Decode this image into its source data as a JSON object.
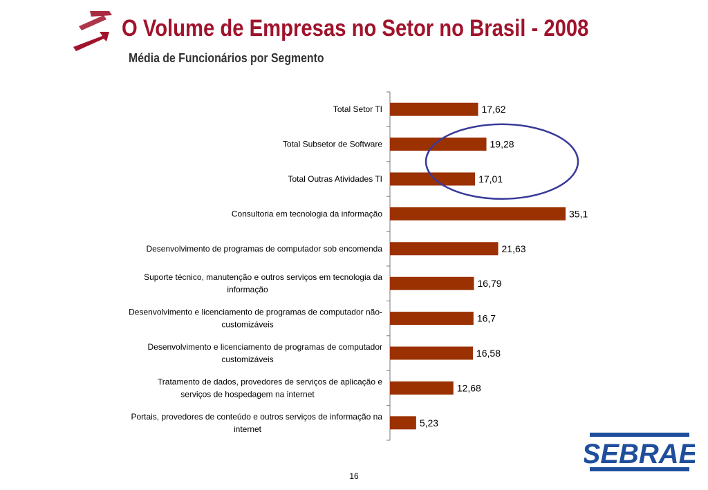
{
  "header": {
    "title": "O Volume de Empresas no Setor no Brasil - 2008",
    "subtitle": "Média de Funcionários por Segmento"
  },
  "footer": {
    "page_number": "16",
    "logo_text": "SEBRAE"
  },
  "colors": {
    "title": "#a0132c",
    "bar": "#9b3000",
    "highlight_ellipse": "#3a3a9a",
    "logo": "#1f4e9c"
  },
  "icons": {
    "header_arrow": "red-arrow-icon",
    "logo": "sebrae-logo"
  },
  "chart_data": {
    "type": "bar",
    "orientation": "horizontal",
    "title": "",
    "xlabel": "",
    "ylabel": "",
    "xlim": [
      0,
      36
    ],
    "grid": false,
    "legend": "none",
    "categories": [
      [
        "Total Setor TI"
      ],
      [
        "Total Subsetor de Software"
      ],
      [
        "Total Outras Atividades TI"
      ],
      [
        "Consultoria em tecnologia da informação"
      ],
      [
        "Desenvolvimento de programas de computador sob encomenda"
      ],
      [
        "Suporte técnico, manutenção e outros serviços em tecnologia da",
        "informação"
      ],
      [
        "Desenvolvimento e licenciamento de programas de computador não-",
        "customizáveis"
      ],
      [
        "Desenvolvimento e licenciamento de programas de computador",
        "customizáveis"
      ],
      [
        "Tratamento de dados, provedores de serviços de aplicação e",
        "serviços de hospedagem na internet"
      ],
      [
        "Portais, provedores de conteúdo e outros serviços de informação na",
        "internet"
      ]
    ],
    "values": [
      17.62,
      19.28,
      17.01,
      35.1,
      21.63,
      16.79,
      16.7,
      16.58,
      12.68,
      5.23
    ],
    "data_labels": [
      "17,62",
      "19,28",
      "17,01",
      "35,1",
      "21,63",
      "16,79",
      "16,7",
      "16,58",
      "12,68",
      "5,23"
    ],
    "annotations": [
      {
        "type": "ellipse",
        "encircles_categories": [
          1,
          2
        ]
      }
    ]
  }
}
